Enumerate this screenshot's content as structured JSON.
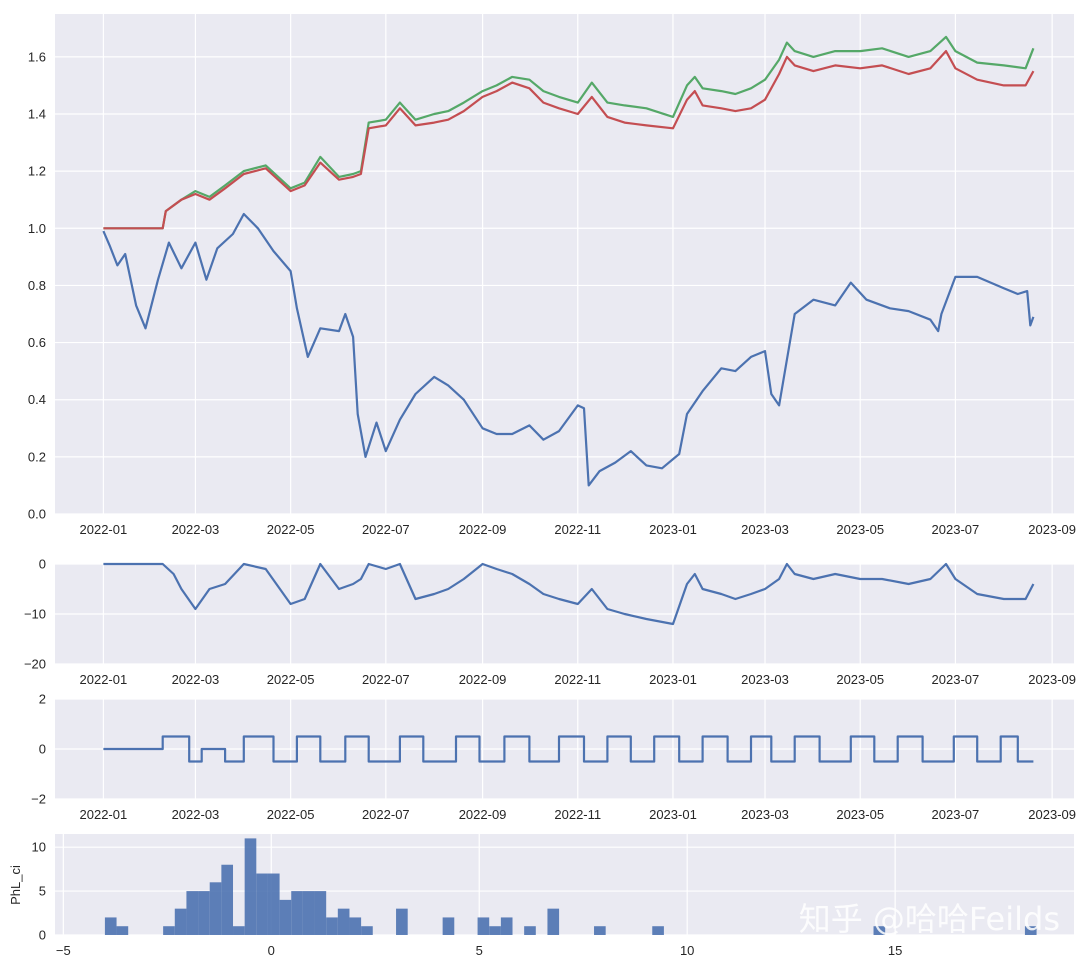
{
  "chart_data": [
    {
      "type": "line",
      "panel": "equity",
      "xlim": [
        "2021-12-01",
        "2023-09-15"
      ],
      "ylim": [
        0,
        1.75
      ],
      "yticks": [
        0.0,
        0.2,
        0.4,
        0.6,
        0.8,
        1.0,
        1.2,
        1.4,
        1.6
      ],
      "ytick_labels": [
        "0.0",
        "0.2",
        "0.4",
        "0.6",
        "0.8",
        "1.0",
        "1.2",
        "1.4",
        "1.6"
      ],
      "xticks": [
        "2022-01",
        "2022-03",
        "2022-05",
        "2022-07",
        "2022-09",
        "2022-11",
        "2023-01",
        "2023-03",
        "2023-05",
        "2023-07",
        "2023-09"
      ],
      "grid": true,
      "series": [
        {
          "color": "#55a868",
          "x": [
            "2022-01-01",
            "2022-02-08",
            "2022-02-10",
            "2022-02-20",
            "2022-03-01",
            "2022-03-10",
            "2022-03-20",
            "2022-04-01",
            "2022-04-15",
            "2022-05-01",
            "2022-05-10",
            "2022-05-20",
            "2022-06-01",
            "2022-06-10",
            "2022-06-15",
            "2022-06-20",
            "2022-07-01",
            "2022-07-10",
            "2022-07-20",
            "2022-08-01",
            "2022-08-10",
            "2022-08-20",
            "2022-09-01",
            "2022-09-10",
            "2022-09-20",
            "2022-10-01",
            "2022-10-10",
            "2022-10-20",
            "2022-11-01",
            "2022-11-10",
            "2022-11-20",
            "2022-12-01",
            "2022-12-15",
            "2023-01-01",
            "2023-01-10",
            "2023-01-15",
            "2023-01-20",
            "2023-02-01",
            "2023-02-10",
            "2023-02-20",
            "2023-03-01",
            "2023-03-10",
            "2023-03-15",
            "2023-03-20",
            "2023-04-01",
            "2023-04-15",
            "2023-05-01",
            "2023-05-15",
            "2023-06-01",
            "2023-06-15",
            "2023-06-25",
            "2023-07-01",
            "2023-07-15",
            "2023-08-01",
            "2023-08-15",
            "2023-08-20"
          ],
          "y": [
            1.0,
            1.0,
            1.06,
            1.1,
            1.13,
            1.11,
            1.15,
            1.2,
            1.22,
            1.14,
            1.16,
            1.25,
            1.18,
            1.19,
            1.2,
            1.37,
            1.38,
            1.44,
            1.38,
            1.4,
            1.41,
            1.44,
            1.48,
            1.5,
            1.53,
            1.52,
            1.48,
            1.46,
            1.44,
            1.51,
            1.44,
            1.43,
            1.42,
            1.39,
            1.5,
            1.53,
            1.49,
            1.48,
            1.47,
            1.49,
            1.52,
            1.59,
            1.65,
            1.62,
            1.6,
            1.62,
            1.62,
            1.63,
            1.6,
            1.62,
            1.67,
            1.62,
            1.58,
            1.57,
            1.56,
            1.63
          ]
        },
        {
          "color": "#c44e52",
          "x": [
            "2022-01-01",
            "2022-02-08",
            "2022-02-10",
            "2022-02-20",
            "2022-03-01",
            "2022-03-10",
            "2022-03-20",
            "2022-04-01",
            "2022-04-15",
            "2022-05-01",
            "2022-05-10",
            "2022-05-20",
            "2022-06-01",
            "2022-06-10",
            "2022-06-15",
            "2022-06-20",
            "2022-07-01",
            "2022-07-10",
            "2022-07-20",
            "2022-08-01",
            "2022-08-10",
            "2022-08-20",
            "2022-09-01",
            "2022-09-10",
            "2022-09-20",
            "2022-10-01",
            "2022-10-10",
            "2022-10-20",
            "2022-11-01",
            "2022-11-10",
            "2022-11-20",
            "2022-12-01",
            "2022-12-15",
            "2023-01-01",
            "2023-01-10",
            "2023-01-15",
            "2023-01-20",
            "2023-02-01",
            "2023-02-10",
            "2023-02-20",
            "2023-03-01",
            "2023-03-10",
            "2023-03-15",
            "2023-03-20",
            "2023-04-01",
            "2023-04-15",
            "2023-05-01",
            "2023-05-15",
            "2023-06-01",
            "2023-06-15",
            "2023-06-25",
            "2023-07-01",
            "2023-07-15",
            "2023-08-01",
            "2023-08-15",
            "2023-08-20"
          ],
          "y": [
            1.0,
            1.0,
            1.06,
            1.1,
            1.12,
            1.1,
            1.14,
            1.19,
            1.21,
            1.13,
            1.15,
            1.23,
            1.17,
            1.18,
            1.19,
            1.35,
            1.36,
            1.42,
            1.36,
            1.37,
            1.38,
            1.41,
            1.46,
            1.48,
            1.51,
            1.49,
            1.44,
            1.42,
            1.4,
            1.46,
            1.39,
            1.37,
            1.36,
            1.35,
            1.45,
            1.48,
            1.43,
            1.42,
            1.41,
            1.42,
            1.45,
            1.54,
            1.6,
            1.57,
            1.55,
            1.57,
            1.56,
            1.57,
            1.54,
            1.56,
            1.62,
            1.56,
            1.52,
            1.5,
            1.5,
            1.55
          ]
        },
        {
          "color": "#4c72b0",
          "x": [
            "2022-01-01",
            "2022-01-05",
            "2022-01-10",
            "2022-01-15",
            "2022-01-22",
            "2022-01-28",
            "2022-02-05",
            "2022-02-12",
            "2022-02-20",
            "2022-03-01",
            "2022-03-08",
            "2022-03-15",
            "2022-03-25",
            "2022-04-01",
            "2022-04-10",
            "2022-04-20",
            "2022-05-01",
            "2022-05-05",
            "2022-05-12",
            "2022-05-20",
            "2022-06-01",
            "2022-06-05",
            "2022-06-10",
            "2022-06-13",
            "2022-06-18",
            "2022-06-25",
            "2022-07-01",
            "2022-07-10",
            "2022-07-20",
            "2022-08-01",
            "2022-08-10",
            "2022-08-20",
            "2022-09-01",
            "2022-09-10",
            "2022-09-20",
            "2022-10-01",
            "2022-10-10",
            "2022-10-20",
            "2022-11-01",
            "2022-11-05",
            "2022-11-08",
            "2022-11-15",
            "2022-11-25",
            "2022-12-05",
            "2022-12-15",
            "2022-12-25",
            "2023-01-05",
            "2023-01-10",
            "2023-01-20",
            "2023-02-01",
            "2023-02-10",
            "2023-02-20",
            "2023-03-01",
            "2023-03-05",
            "2023-03-10",
            "2023-03-20",
            "2023-04-01",
            "2023-04-15",
            "2023-04-25",
            "2023-05-05",
            "2023-05-20",
            "2023-06-01",
            "2023-06-15",
            "2023-06-20",
            "2023-06-22",
            "2023-07-01",
            "2023-07-15",
            "2023-08-01",
            "2023-08-10",
            "2023-08-16",
            "2023-08-18",
            "2023-08-20"
          ],
          "y": [
            0.99,
            0.94,
            0.87,
            0.91,
            0.73,
            0.65,
            0.82,
            0.95,
            0.86,
            0.95,
            0.82,
            0.93,
            0.98,
            1.05,
            1.0,
            0.92,
            0.85,
            0.72,
            0.55,
            0.65,
            0.64,
            0.7,
            0.62,
            0.35,
            0.2,
            0.32,
            0.22,
            0.33,
            0.42,
            0.48,
            0.45,
            0.4,
            0.3,
            0.28,
            0.28,
            0.31,
            0.26,
            0.29,
            0.38,
            0.37,
            0.1,
            0.15,
            0.18,
            0.22,
            0.17,
            0.16,
            0.21,
            0.35,
            0.43,
            0.51,
            0.5,
            0.55,
            0.57,
            0.42,
            0.38,
            0.7,
            0.75,
            0.73,
            0.81,
            0.75,
            0.72,
            0.71,
            0.68,
            0.64,
            0.7,
            0.83,
            0.83,
            0.79,
            0.77,
            0.78,
            0.66,
            0.69
          ]
        }
      ]
    },
    {
      "type": "line",
      "panel": "drawdown",
      "xlim": [
        "2021-12-01",
        "2023-09-15"
      ],
      "ylim": [
        -20,
        0
      ],
      "yticks": [
        0,
        -10,
        -20
      ],
      "ytick_labels": [
        "0",
        "−10",
        "−20"
      ],
      "xticks": [
        "2022-01",
        "2022-03",
        "2022-05",
        "2022-07",
        "2022-09",
        "2022-11",
        "2023-01",
        "2023-03",
        "2023-05",
        "2023-07",
        "2023-09"
      ],
      "grid": true,
      "series": [
        {
          "color": "#4c72b0",
          "x": [
            "2022-01-01",
            "2022-02-08",
            "2022-02-15",
            "2022-02-20",
            "2022-03-01",
            "2022-03-10",
            "2022-03-20",
            "2022-04-01",
            "2022-04-15",
            "2022-05-01",
            "2022-05-10",
            "2022-05-20",
            "2022-06-01",
            "2022-06-10",
            "2022-06-15",
            "2022-06-20",
            "2022-07-01",
            "2022-07-10",
            "2022-07-20",
            "2022-08-01",
            "2022-08-10",
            "2022-08-20",
            "2022-09-01",
            "2022-09-10",
            "2022-09-20",
            "2022-10-01",
            "2022-10-10",
            "2022-10-20",
            "2022-11-01",
            "2022-11-10",
            "2022-11-20",
            "2022-12-01",
            "2022-12-15",
            "2023-01-01",
            "2023-01-10",
            "2023-01-15",
            "2023-01-20",
            "2023-02-01",
            "2023-02-10",
            "2023-02-20",
            "2023-03-01",
            "2023-03-10",
            "2023-03-15",
            "2023-03-20",
            "2023-04-01",
            "2023-04-15",
            "2023-05-01",
            "2023-05-15",
            "2023-06-01",
            "2023-06-15",
            "2023-06-25",
            "2023-07-01",
            "2023-07-15",
            "2023-08-01",
            "2023-08-15",
            "2023-08-20"
          ],
          "y": [
            0,
            0,
            -2,
            -5,
            -9,
            -5,
            -4,
            0,
            -1,
            -8,
            -7,
            0,
            -5,
            -4,
            -3,
            0,
            -1,
            0,
            -7,
            -6,
            -5,
            -3,
            0,
            -1,
            -2,
            -4,
            -6,
            -7,
            -8,
            -5,
            -9,
            -10,
            -11,
            -12,
            -4,
            -2,
            -5,
            -6,
            -7,
            -6,
            -5,
            -3,
            0,
            -2,
            -3,
            -2,
            -3,
            -3,
            -4,
            -3,
            0,
            -3,
            -6,
            -7,
            -7,
            -4
          ]
        }
      ]
    },
    {
      "type": "line",
      "panel": "position",
      "xlim": [
        "2021-12-01",
        "2023-09-15"
      ],
      "ylim": [
        -2,
        2
      ],
      "yticks": [
        2,
        0,
        -2
      ],
      "ytick_labels": [
        "2",
        "0",
        "−2"
      ],
      "xticks": [
        "2022-01",
        "2022-03",
        "2022-05",
        "2022-07",
        "2022-09",
        "2022-11",
        "2023-01",
        "2023-03",
        "2023-05",
        "2023-07",
        "2023-09"
      ],
      "grid": true,
      "series": [
        {
          "color": "#4c72b0",
          "step": true,
          "x": [
            "2022-01-01",
            "2022-02-08",
            "2022-02-25",
            "2022-03-05",
            "2022-03-20",
            "2022-04-01",
            "2022-04-20",
            "2022-05-05",
            "2022-05-20",
            "2022-06-05",
            "2022-06-20",
            "2022-07-10",
            "2022-07-25",
            "2022-08-15",
            "2022-08-30",
            "2022-09-15",
            "2022-10-01",
            "2022-10-20",
            "2022-11-05",
            "2022-11-20",
            "2022-12-05",
            "2022-12-20",
            "2023-01-05",
            "2023-01-20",
            "2023-02-05",
            "2023-02-20",
            "2023-03-05",
            "2023-03-20",
            "2023-04-05",
            "2023-04-25",
            "2023-05-10",
            "2023-05-25",
            "2023-06-10",
            "2023-06-30",
            "2023-07-15",
            "2023-07-30",
            "2023-08-10",
            "2023-08-20"
          ],
          "y": [
            0,
            0.5,
            -0.5,
            0,
            -0.5,
            0.5,
            -0.5,
            0.5,
            -0.5,
            0.5,
            -0.5,
            0.5,
            -0.5,
            0.5,
            -0.5,
            0.5,
            -0.5,
            0.5,
            -0.5,
            0.5,
            -0.5,
            0.5,
            -0.5,
            0.5,
            -0.5,
            0.5,
            -0.5,
            0.5,
            -0.5,
            0.5,
            -0.5,
            0.5,
            -0.5,
            0.5,
            -0.5,
            0.5,
            -0.5,
            -0.5
          ]
        }
      ]
    },
    {
      "type": "bar",
      "panel": "histogram",
      "ylabel": "PhL_ci",
      "xlim": [
        -5.2,
        19.3
      ],
      "ylim": [
        0,
        11.5
      ],
      "xticks": [
        -5,
        0,
        5,
        10,
        15
      ],
      "xtick_labels": [
        "−5",
        "0",
        "5",
        "10",
        "15"
      ],
      "yticks": [
        0,
        5,
        10
      ],
      "ytick_labels": [
        "0",
        "5",
        "10"
      ],
      "bin_width": 0.28,
      "grid": true,
      "bins": [
        {
          "x": -4.0,
          "count": 2
        },
        {
          "x": -3.72,
          "count": 1
        },
        {
          "x": -2.6,
          "count": 1
        },
        {
          "x": -2.32,
          "count": 3
        },
        {
          "x": -2.04,
          "count": 5
        },
        {
          "x": -1.76,
          "count": 5
        },
        {
          "x": -1.48,
          "count": 6
        },
        {
          "x": -1.2,
          "count": 8
        },
        {
          "x": -0.92,
          "count": 1
        },
        {
          "x": -0.64,
          "count": 11
        },
        {
          "x": -0.36,
          "count": 7
        },
        {
          "x": -0.08,
          "count": 7
        },
        {
          "x": 0.2,
          "count": 4
        },
        {
          "x": 0.48,
          "count": 5
        },
        {
          "x": 0.76,
          "count": 5
        },
        {
          "x": 1.04,
          "count": 5
        },
        {
          "x": 1.32,
          "count": 2
        },
        {
          "x": 1.6,
          "count": 3
        },
        {
          "x": 1.88,
          "count": 2
        },
        {
          "x": 2.16,
          "count": 1
        },
        {
          "x": 3.0,
          "count": 3
        },
        {
          "x": 4.12,
          "count": 2
        },
        {
          "x": 4.96,
          "count": 2
        },
        {
          "x": 5.24,
          "count": 1
        },
        {
          "x": 5.52,
          "count": 2
        },
        {
          "x": 6.08,
          "count": 1
        },
        {
          "x": 6.64,
          "count": 3
        },
        {
          "x": 7.76,
          "count": 1
        },
        {
          "x": 9.16,
          "count": 1
        },
        {
          "x": 14.48,
          "count": 1
        },
        {
          "x": 18.12,
          "count": 1
        }
      ]
    }
  ],
  "watermark": "知乎 @哈哈Feilds"
}
